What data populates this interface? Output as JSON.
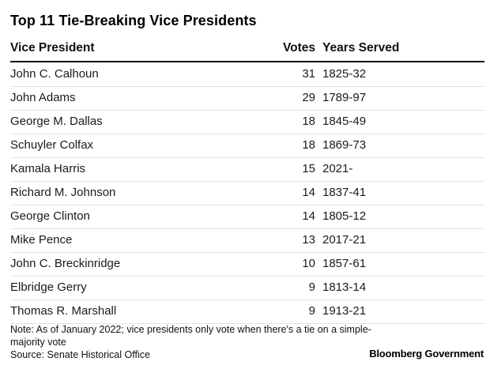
{
  "chart_data": {
    "type": "table",
    "title": "Top 11 Tie-Breaking Vice Presidents",
    "columns": [
      "Vice President",
      "Votes",
      "Years Served"
    ],
    "rows": [
      {
        "name": "John C. Calhoun",
        "votes": "31",
        "years": "1825-32"
      },
      {
        "name": "John Adams",
        "votes": "29",
        "years": "1789-97"
      },
      {
        "name": "George M. Dallas",
        "votes": "18",
        "years": "1845-49"
      },
      {
        "name": "Schuyler Colfax",
        "votes": "18",
        "years": "1869-73"
      },
      {
        "name": "Kamala Harris",
        "votes": "15",
        "years": "2021-"
      },
      {
        "name": "Richard M. Johnson",
        "votes": "14",
        "years": "1837-41"
      },
      {
        "name": "George Clinton",
        "votes": "14",
        "years": "1805-12"
      },
      {
        "name": "Mike Pence",
        "votes": "13",
        "years": "2017-21"
      },
      {
        "name": "John C. Breckinridge",
        "votes": "10",
        "years": "1857-61"
      },
      {
        "name": "Elbridge Gerry",
        "votes": "9",
        "years": "1813-14"
      },
      {
        "name": "Thomas R. Marshall",
        "votes": "9",
        "years": "1913-21"
      }
    ],
    "note": "Note: As of January 2022; vice presidents only vote when there's a tie on a simple-majority vote",
    "source": "Source: Senate Historical Office",
    "brand": "Bloomberg Government"
  }
}
